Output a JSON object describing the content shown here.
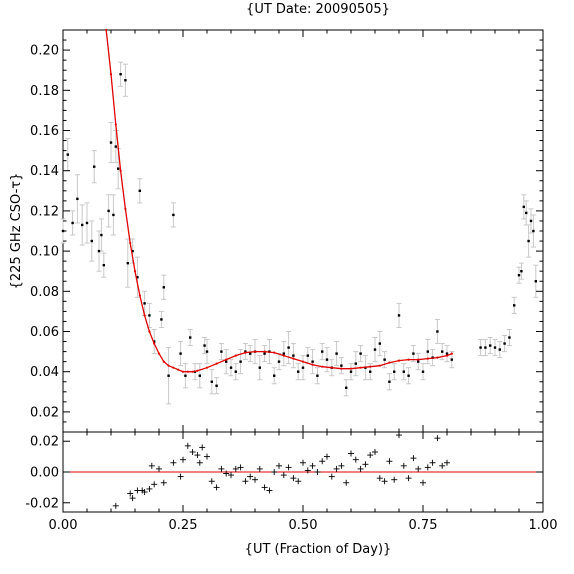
{
  "chart_data": [
    {
      "type": "scatter",
      "panel": "main",
      "title": "{UT Date: 20090505}",
      "xlabel": "{UT (Fraction of Day)}",
      "ylabel": "{225 GHz CSO-τ}",
      "xlim": [
        0.0,
        1.0
      ],
      "ylim": [
        0.01,
        0.21
      ],
      "xticks": [
        0.0,
        0.25,
        0.5,
        0.75,
        1.0
      ],
      "xtick_labels": [
        "0.00",
        "0.25",
        "0.50",
        "0.75",
        "1.00"
      ],
      "yticks": [
        0.02,
        0.04,
        0.06,
        0.08,
        0.1,
        0.12,
        0.14,
        0.16,
        0.18,
        0.2
      ],
      "ytick_labels": [
        "0.02",
        "0.04",
        "0.06",
        "0.08",
        "0.10",
        "0.12",
        "0.14",
        "0.16",
        "0.18",
        "0.20"
      ],
      "grid": false,
      "legend": "none",
      "colors": {
        "points": "#000000",
        "error_bars": "#c8c8c8",
        "fit": "#e00000"
      },
      "series": [
        {
          "kind": "points_with_error_bars",
          "x": [
            0.0,
            0.01,
            0.02,
            0.03,
            0.04,
            0.05,
            0.06,
            0.065,
            0.075,
            0.08,
            0.085,
            0.095,
            0.1,
            0.105,
            0.11,
            0.115,
            0.12,
            0.13,
            0.135,
            0.145,
            0.155,
            0.16,
            0.17,
            0.18,
            0.19,
            0.205,
            0.21,
            0.22,
            0.23,
            0.245,
            0.255,
            0.265,
            0.275,
            0.285,
            0.295,
            0.3,
            0.31,
            0.32,
            0.33,
            0.34,
            0.35,
            0.36,
            0.37,
            0.38,
            0.39,
            0.4,
            0.41,
            0.42,
            0.43,
            0.44,
            0.45,
            0.46,
            0.47,
            0.48,
            0.49,
            0.5,
            0.51,
            0.52,
            0.53,
            0.54,
            0.55,
            0.56,
            0.57,
            0.58,
            0.59,
            0.6,
            0.61,
            0.62,
            0.63,
            0.64,
            0.65,
            0.66,
            0.67,
            0.68,
            0.69,
            0.7,
            0.71,
            0.72,
            0.73,
            0.74,
            0.75,
            0.76,
            0.77,
            0.78,
            0.79,
            0.8,
            0.81,
            0.87,
            0.88,
            0.89,
            0.9,
            0.91,
            0.92,
            0.93,
            0.94,
            0.95,
            0.955,
            0.96,
            0.965,
            0.97,
            0.975,
            0.98,
            0.985
          ],
          "y": [
            0.11,
            0.148,
            0.114,
            0.126,
            0.113,
            0.114,
            0.105,
            0.142,
            0.1,
            0.108,
            0.093,
            0.12,
            0.154,
            0.118,
            0.152,
            0.141,
            0.188,
            0.185,
            0.094,
            0.1,
            0.087,
            0.13,
            0.074,
            0.068,
            0.055,
            0.066,
            0.082,
            0.038,
            0.118,
            0.049,
            0.038,
            0.057,
            0.04,
            0.038,
            0.053,
            0.05,
            0.035,
            0.033,
            0.05,
            0.045,
            0.042,
            0.04,
            0.045,
            0.05,
            0.049,
            0.05,
            0.042,
            0.049,
            0.05,
            0.038,
            0.045,
            0.049,
            0.052,
            0.048,
            0.04,
            0.042,
            0.048,
            0.045,
            0.038,
            0.05,
            0.046,
            0.042,
            0.049,
            0.043,
            0.032,
            0.04,
            0.044,
            0.049,
            0.042,
            0.04,
            0.051,
            0.054,
            0.046,
            0.035,
            0.04,
            0.068,
            0.04,
            0.038,
            0.049,
            0.045,
            0.04,
            0.05,
            0.047,
            0.06,
            0.05,
            0.049,
            0.046,
            0.052,
            0.052,
            0.053,
            0.052,
            0.051,
            0.054,
            0.057,
            0.073,
            0.088,
            0.09,
            0.122,
            0.119,
            0.105,
            0.115,
            0.11,
            0.085
          ],
          "err": [
            0.006,
            0.008,
            0.006,
            0.012,
            0.01,
            0.01,
            0.01,
            0.008,
            0.01,
            0.008,
            0.006,
            0.008,
            0.01,
            0.01,
            0.008,
            0.01,
            0.006,
            0.008,
            0.012,
            0.006,
            0.01,
            0.006,
            0.006,
            0.006,
            0.006,
            0.004,
            0.006,
            0.014,
            0.006,
            0.006,
            0.006,
            0.004,
            0.004,
            0.006,
            0.004,
            0.006,
            0.006,
            0.004,
            0.004,
            0.006,
            0.004,
            0.004,
            0.006,
            0.004,
            0.004,
            0.006,
            0.006,
            0.004,
            0.006,
            0.004,
            0.004,
            0.006,
            0.008,
            0.006,
            0.004,
            0.006,
            0.004,
            0.006,
            0.004,
            0.004,
            0.006,
            0.004,
            0.006,
            0.004,
            0.004,
            0.004,
            0.006,
            0.004,
            0.006,
            0.004,
            0.006,
            0.006,
            0.004,
            0.004,
            0.004,
            0.006,
            0.004,
            0.004,
            0.004,
            0.004,
            0.004,
            0.006,
            0.004,
            0.006,
            0.004,
            0.004,
            0.004,
            0.004,
            0.004,
            0.004,
            0.004,
            0.004,
            0.004,
            0.004,
            0.004,
            0.004,
            0.004,
            0.006,
            0.006,
            0.008,
            0.006,
            0.008,
            0.008
          ]
        },
        {
          "kind": "fit_curve",
          "x": [
            0.09,
            0.1,
            0.11,
            0.12,
            0.13,
            0.14,
            0.15,
            0.16,
            0.17,
            0.18,
            0.19,
            0.2,
            0.21,
            0.22,
            0.23,
            0.24,
            0.25,
            0.26,
            0.27,
            0.28,
            0.3,
            0.32,
            0.34,
            0.36,
            0.38,
            0.4,
            0.42,
            0.44,
            0.46,
            0.48,
            0.5,
            0.52,
            0.54,
            0.56,
            0.58,
            0.6,
            0.62,
            0.64,
            0.66,
            0.68,
            0.7,
            0.72,
            0.74,
            0.76,
            0.78,
            0.8,
            0.81
          ],
          "y": [
            0.21,
            0.188,
            0.163,
            0.14,
            0.121,
            0.104,
            0.09,
            0.078,
            0.068,
            0.06,
            0.054,
            0.049,
            0.045,
            0.043,
            0.042,
            0.041,
            0.04,
            0.04,
            0.04,
            0.0405,
            0.042,
            0.044,
            0.046,
            0.048,
            0.0495,
            0.05,
            0.05,
            0.0495,
            0.048,
            0.0465,
            0.045,
            0.0435,
            0.0425,
            0.042,
            0.0415,
            0.0415,
            0.042,
            0.0425,
            0.043,
            0.0445,
            0.0455,
            0.046,
            0.046,
            0.0465,
            0.047,
            0.048,
            0.049
          ]
        }
      ]
    },
    {
      "type": "scatter",
      "panel": "residuals",
      "xlim": [
        0.0,
        1.0
      ],
      "ylim": [
        -0.026,
        0.026
      ],
      "yticks": [
        -0.02,
        0.0,
        0.02
      ],
      "ytick_labels": [
        "-0.02",
        "0.00",
        "0.02"
      ],
      "reference_line_y": 0.0,
      "colors": {
        "points": "#000000",
        "reference": "#e00000"
      },
      "x": [
        0.11,
        0.14,
        0.145,
        0.155,
        0.165,
        0.17,
        0.18,
        0.185,
        0.19,
        0.2,
        0.21,
        0.23,
        0.245,
        0.25,
        0.26,
        0.27,
        0.28,
        0.285,
        0.29,
        0.3,
        0.31,
        0.32,
        0.33,
        0.34,
        0.35,
        0.36,
        0.37,
        0.38,
        0.39,
        0.4,
        0.41,
        0.42,
        0.43,
        0.44,
        0.45,
        0.46,
        0.47,
        0.48,
        0.49,
        0.5,
        0.51,
        0.52,
        0.53,
        0.54,
        0.55,
        0.56,
        0.57,
        0.58,
        0.59,
        0.6,
        0.61,
        0.62,
        0.63,
        0.64,
        0.65,
        0.66,
        0.67,
        0.68,
        0.69,
        0.7,
        0.71,
        0.72,
        0.73,
        0.74,
        0.75,
        0.76,
        0.77,
        0.78,
        0.79,
        0.8
      ],
      "y": [
        -0.022,
        -0.014,
        -0.017,
        -0.012,
        -0.012,
        -0.013,
        -0.011,
        0.004,
        -0.008,
        0.002,
        -0.007,
        0.006,
        -0.003,
        0.008,
        0.017,
        0.013,
        0.011,
        0.006,
        0.016,
        0.01,
        -0.006,
        -0.01,
        0.002,
        -0.001,
        -0.002,
        0.002,
        0.003,
        -0.006,
        -0.003,
        -0.005,
        0.002,
        -0.01,
        -0.012,
        0.0,
        0.004,
        -0.002,
        0.003,
        -0.004,
        -0.006,
        0.006,
        0.001,
        0.004,
        0.0,
        0.007,
        0.01,
        -0.003,
        0.002,
        0.004,
        -0.007,
        0.012,
        0.008,
        0.002,
        0.005,
        0.011,
        0.013,
        -0.004,
        -0.006,
        0.007,
        -0.005,
        0.024,
        0.004,
        -0.004,
        0.009,
        0.002,
        -0.007,
        0.003,
        0.006,
        0.022,
        0.004,
        0.006
      ]
    }
  ]
}
